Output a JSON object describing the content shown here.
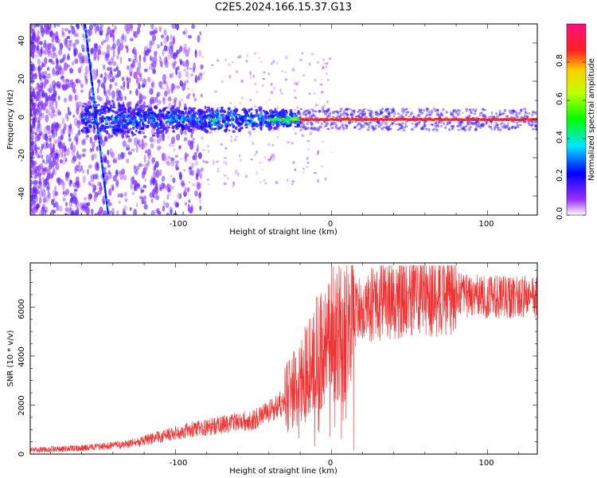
{
  "title": "C2E5.2024.166.15.37.G13",
  "chart_data": [
    {
      "type": "heatmap",
      "name": "spectrogram",
      "xlabel": "Height of straight line (km)",
      "ylabel": "Frequency (Hz)",
      "xlim": [
        -193,
        132
      ],
      "ylim": [
        -50,
        50
      ],
      "xticks": [
        "-100",
        "0",
        "100"
      ],
      "yticks": [
        "40",
        "20",
        "0",
        "-20",
        "-40"
      ],
      "colorbar": {
        "label": "Normalized spectral amplitude",
        "range": [
          0,
          1
        ],
        "ticks": [
          "0.0",
          "0.2",
          "0.4",
          "0.6",
          "0.8"
        ]
      },
      "features": {
        "carrier_freq_hz": 0,
        "carrier_strong_from_km": -20,
        "noise_band_halfwidth_hz": 8,
        "diagonal_line": {
          "x_start_km": -158,
          "y_start_hz": 50,
          "x_end_km": -143,
          "y_end_hz": -50
        }
      }
    },
    {
      "type": "line",
      "name": "snr",
      "xlabel": "Height of straight line (km)",
      "ylabel": "SNR (10 * v/v)",
      "xlim": [
        -193,
        132
      ],
      "ylim": [
        0,
        7800
      ],
      "xticks": [
        "-100",
        "0",
        "100"
      ],
      "yticks": [
        "0",
        "2000",
        "4000",
        "6000"
      ],
      "color": "#f03030",
      "series": [
        {
          "name": "SNR",
          "x": [
            -193,
            -160,
            -130,
            -110,
            -90,
            -70,
            -50,
            -40,
            -30,
            -25,
            -20,
            -15,
            -10,
            -5,
            0,
            10,
            20,
            30,
            40,
            60,
            80,
            100,
            132
          ],
          "values": [
            150,
            250,
            400,
            700,
            1000,
            1200,
            1400,
            1700,
            2200,
            2600,
            3000,
            3400,
            4000,
            4400,
            4800,
            5300,
            5900,
            6200,
            6350,
            6450,
            6500,
            6400,
            6400
          ]
        }
      ]
    }
  ]
}
